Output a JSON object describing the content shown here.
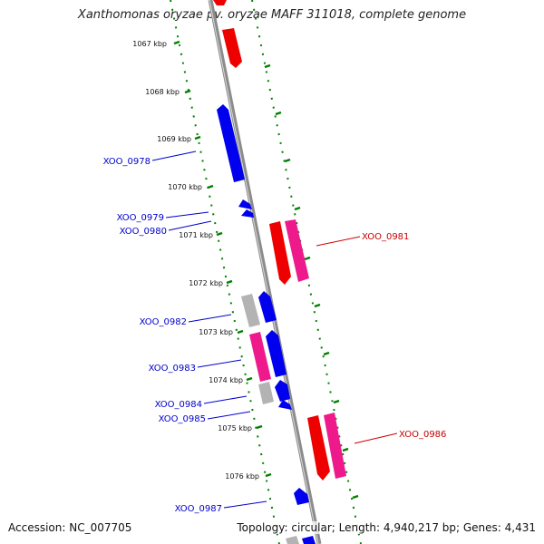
{
  "title": "Xanthomonas oryzae pv. oryzae MAFF 311018, complete genome",
  "footer": {
    "accession": "Accession: NC_007705",
    "summary": "Topology: circular; Length: 4,940,217 bp; Genes: 4,431"
  },
  "colors": {
    "backbone": "#8c8c8c",
    "ticks": "#008000",
    "plus_label": "#0000cc",
    "minus_label": "#cc0000",
    "gene_blue": "#0000ee",
    "gene_red": "#ee0000",
    "gene_pink": "#ee1a8c",
    "gene_gray": "#b3b3b3"
  },
  "position_labels": [
    "1067 kbp",
    "1068 kbp",
    "1069 kbp",
    "1070 kbp",
    "1071 kbp",
    "1072 kbp",
    "1073 kbp",
    "1074 kbp",
    "1075 kbp",
    "1076 kbp"
  ],
  "locus_tags": {
    "left": [
      "XOO_0978",
      "XOO_0979",
      "XOO_0980",
      "XOO_0982",
      "XOO_0983",
      "XOO_0984",
      "XOO_0985",
      "XOO_0987"
    ],
    "right": [
      "XOO_0981",
      "XOO_0986"
    ]
  }
}
